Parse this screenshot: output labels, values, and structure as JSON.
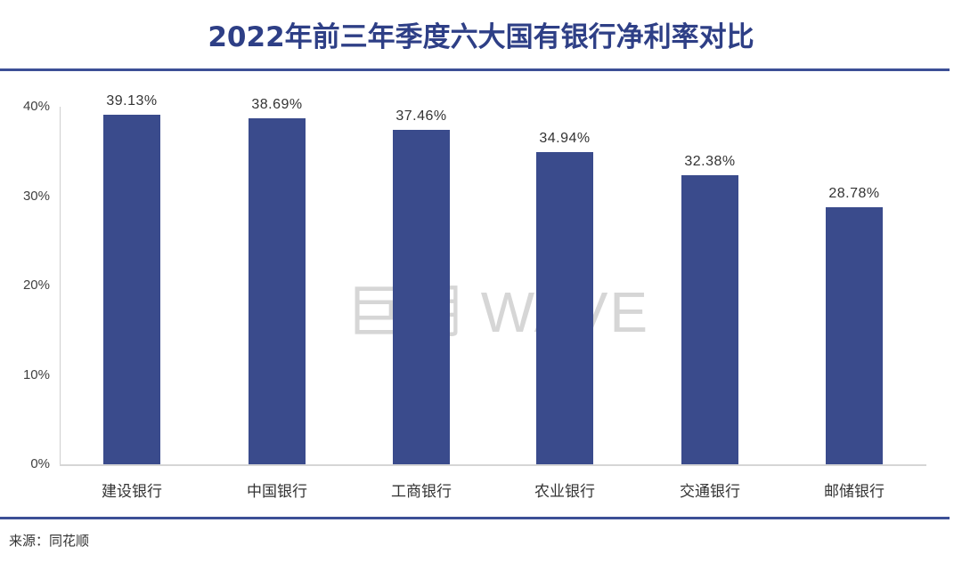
{
  "title": "2022年前三年季度六大国有银行净利率对比",
  "watermark": "巨潮 WAVE",
  "source": "来源：同花顺",
  "colors": {
    "bar": "#3a4b8c",
    "title": "#2e3f86",
    "rule": "#3c4f96"
  },
  "yaxis": {
    "ticks": [
      "40%",
      "30%",
      "20%",
      "10%",
      "0%"
    ]
  },
  "bars": [
    {
      "category": "建设银行",
      "value": 39.13,
      "label": "39.13%"
    },
    {
      "category": "中国银行",
      "value": 38.69,
      "label": "38.69%"
    },
    {
      "category": "工商银行",
      "value": 37.46,
      "label": "37.46%"
    },
    {
      "category": "农业银行",
      "value": 34.94,
      "label": "34.94%"
    },
    {
      "category": "交通银行",
      "value": 32.38,
      "label": "32.38%"
    },
    {
      "category": "邮储银行",
      "value": 28.78,
      "label": "28.78%"
    }
  ],
  "chart_data": {
    "type": "bar",
    "title": "2022年前三年季度六大国有银行净利率对比",
    "categories": [
      "建设银行",
      "中国银行",
      "工商银行",
      "农业银行",
      "交通银行",
      "邮储银行"
    ],
    "values": [
      39.13,
      38.69,
      37.46,
      34.94,
      32.38,
      28.78
    ],
    "value_labels": [
      "39.13%",
      "38.69%",
      "37.46%",
      "34.94%",
      "32.38%",
      "28.78%"
    ],
    "xlabel": "",
    "ylabel": "",
    "ylim": [
      0,
      40
    ],
    "yticks": [
      "0%",
      "10%",
      "20%",
      "30%",
      "40%"
    ],
    "grid": false,
    "legend": null,
    "source": "来源：同花顺",
    "watermark": "巨潮 WAVE"
  }
}
